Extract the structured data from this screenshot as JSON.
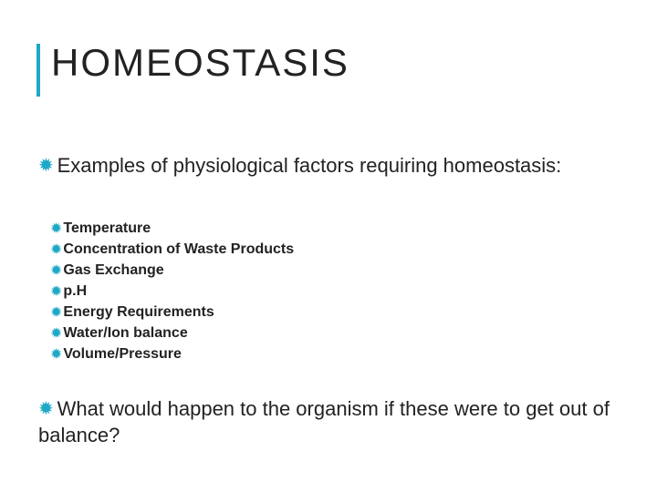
{
  "title": "HOMEOSTASIS",
  "colors": {
    "accent": "#1ea8c7",
    "text": "#222222",
    "background": "#ffffff"
  },
  "main_bullets": [
    "Examples of physiological factors requiring homeostasis:",
    "What would happen to the organism if these were to get out of balance?"
  ],
  "sub_bullets": [
    "Temperature",
    "Concentration of Waste Products",
    "Gas Exchange",
    "p.H",
    "Energy Requirements",
    "Water/Ion balance",
    "Volume/Pressure"
  ],
  "typography": {
    "title_fontsize": 42,
    "main_fontsize": 22,
    "sub_fontsize": 16,
    "sub_weight": "bold"
  }
}
